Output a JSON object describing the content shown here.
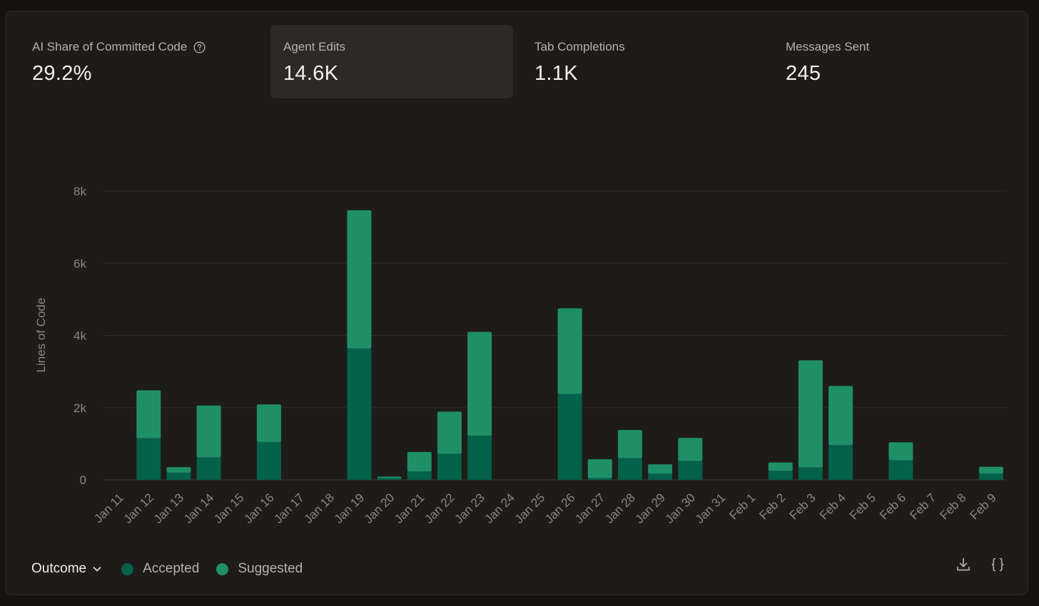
{
  "stats": [
    {
      "label": "AI Share of Committed Code",
      "value": "29.2%",
      "help_icon": "help-circle-icon"
    },
    {
      "label": "Agent Edits",
      "value": "14.6K"
    },
    {
      "label": "Tab Completions",
      "value": "1.1K"
    },
    {
      "label": "Messages Sent",
      "value": "245"
    }
  ],
  "legend": {
    "dropdown_label": "Outcome",
    "dropdown_icon": "chevron-down-icon",
    "items": [
      {
        "label": "Accepted",
        "color": "#04614a"
      },
      {
        "label": "Suggested",
        "color": "#1f8f68"
      }
    ]
  },
  "toolbar": {
    "download_icon": "download-icon",
    "json_icon": "code-braces-icon"
  },
  "colors": {
    "accepted": "#04614a",
    "suggested": "#1f8f68",
    "grid": "#2e2d29",
    "axis_text": "#8a8780",
    "active_card": "#2b2a26"
  },
  "chart_data": {
    "type": "bar",
    "stacked": true,
    "ylabel": "Lines of Code",
    "xlabel": "",
    "ylim": [
      0,
      8000
    ],
    "yticks": [
      0,
      2000,
      4000,
      6000,
      8000
    ],
    "ytick_labels": [
      "0",
      "2k",
      "4k",
      "6k",
      "8k"
    ],
    "grid": true,
    "categories": [
      "Jan 11",
      "Jan 12",
      "Jan 13",
      "Jan 14",
      "Jan 15",
      "Jan 16",
      "Jan 17",
      "Jan 18",
      "Jan 19",
      "Jan 20",
      "Jan 21",
      "Jan 22",
      "Jan 23",
      "Jan 24",
      "Jan 25",
      "Jan 26",
      "Jan 27",
      "Jan 28",
      "Jan 29",
      "Jan 30",
      "Jan 31",
      "Feb 1",
      "Feb 2",
      "Feb 3",
      "Feb 4",
      "Feb 5",
      "Feb 6",
      "Feb 7",
      "Feb 8",
      "Feb 9"
    ],
    "series": [
      {
        "name": "Accepted",
        "values": [
          0,
          1150,
          200,
          620,
          0,
          1050,
          0,
          0,
          3640,
          50,
          230,
          720,
          1220,
          0,
          0,
          2380,
          50,
          600,
          170,
          520,
          0,
          0,
          250,
          340,
          960,
          0,
          540,
          0,
          0,
          170
        ]
      },
      {
        "name": "Suggested",
        "values": [
          0,
          1330,
          150,
          1440,
          0,
          1040,
          0,
          0,
          3830,
          40,
          540,
          1170,
          2880,
          0,
          0,
          2370,
          520,
          780,
          260,
          640,
          0,
          0,
          230,
          2970,
          1640,
          0,
          500,
          0,
          0,
          190
        ]
      }
    ]
  }
}
